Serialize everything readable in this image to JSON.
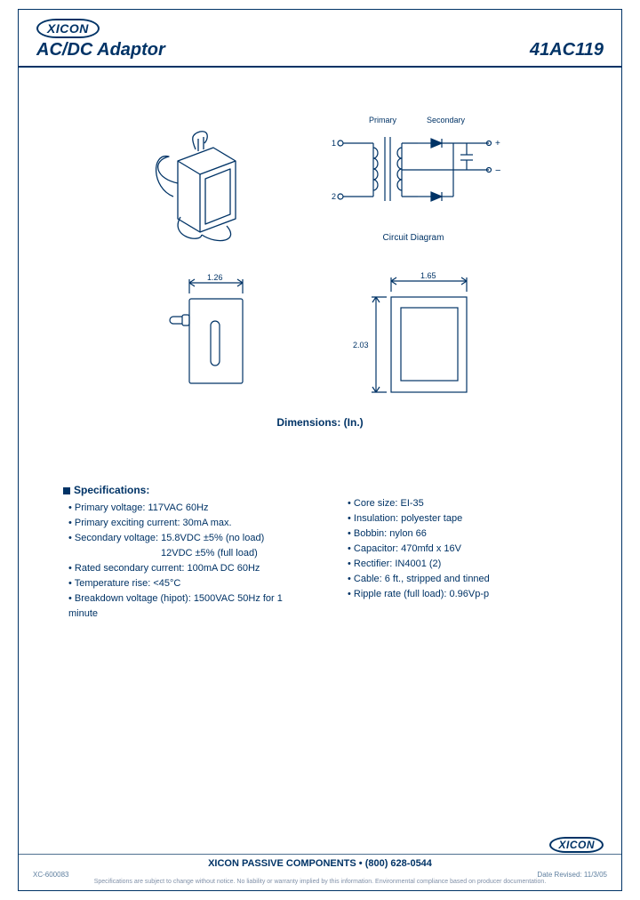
{
  "brand": "XICON",
  "header": {
    "title_left": "AC/DC Adaptor",
    "title_right": "41AC119"
  },
  "circuit": {
    "primary_label": "Primary",
    "secondary_label": "Secondary",
    "pin1": "1",
    "pin2": "2",
    "plus": "+",
    "minus": "−",
    "caption": "Circuit Diagram"
  },
  "dims": {
    "width_top": "1.26",
    "front_width": "1.65",
    "front_height": "2.03",
    "caption": "Dimensions: (In.)"
  },
  "specs": {
    "title": "Specifications:",
    "col1": [
      "Primary voltage:  117VAC 60Hz",
      "Primary exciting current:  30mA max.",
      "Secondary voltage:  15.8VDC ±5% (no load)",
      "12VDC ±5% (full load)",
      "Rated secondary current:  100mA DC 60Hz",
      "Temperature rise:  <45°C",
      "Breakdown voltage (hipot):  1500VAC 50Hz for 1 minute"
    ],
    "col1_sub_index": 3,
    "col2": [
      "Core size:  EI-35",
      "Insulation:  polyester tape",
      "Bobbin:  nylon 66",
      "Capacitor:  470mfd x 16V",
      "Rectifier:  IN4001  (2)",
      "Cable:  6 ft., stripped and tinned",
      "Ripple rate (full load):  0.96Vp-p"
    ]
  },
  "footer": {
    "main": "XICON PASSIVE COMPONENTS   •   (800) 628-0544",
    "left": "XC-600083",
    "right": "Date Revised:  11/3/05",
    "disclaimer": "Specifications are subject to change without notice. No liability or warranty implied by this information. Environmental compliance based on producer documentation."
  },
  "colors": {
    "ink": "#003366",
    "light": "#8aa0b8",
    "bg": "#ffffff"
  }
}
